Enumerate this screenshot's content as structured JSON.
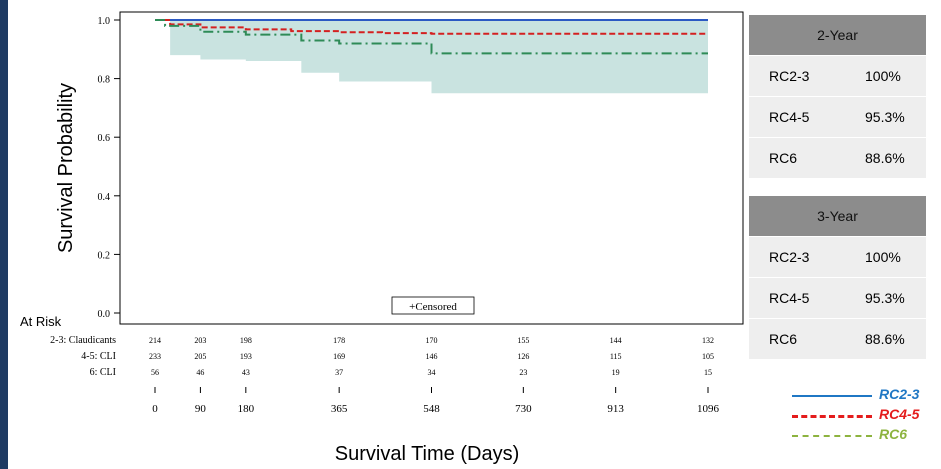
{
  "chart_data": {
    "type": "line",
    "ylabel": "Survival Probability",
    "xlabel": "Survival Time (Days)",
    "ylim": [
      0,
      1
    ],
    "xlim": [
      0,
      1096
    ],
    "yticks": [
      "0.0",
      "0.2",
      "0.4",
      "0.6",
      "0.8",
      "1.0"
    ],
    "xticks": [
      "0",
      "90",
      "180",
      "365",
      "548",
      "730",
      "913",
      "1096"
    ],
    "censored_label": "+Censored",
    "series": [
      {
        "name": "RC2-3",
        "color": "#2b59c3",
        "x": [
          0,
          1096
        ],
        "y": [
          1.0,
          1.0
        ]
      },
      {
        "name": "RC4-5",
        "color": "#d42020",
        "x": [
          0,
          30,
          90,
          180,
          270,
          365,
          450,
          548,
          1096
        ],
        "y": [
          1.0,
          0.985,
          0.975,
          0.968,
          0.962,
          0.958,
          0.955,
          0.953,
          0.953
        ]
      },
      {
        "name": "RC6",
        "color": "#2e8b57",
        "x": [
          0,
          20,
          90,
          180,
          290,
          365,
          548,
          1096
        ],
        "y": [
          1.0,
          0.98,
          0.96,
          0.95,
          0.93,
          0.92,
          0.886,
          0.886
        ]
      }
    ],
    "ci_band": {
      "x": [
        0,
        30,
        90,
        180,
        290,
        365,
        548,
        1096
      ],
      "lower": [
        1.0,
        0.88,
        0.865,
        0.86,
        0.82,
        0.79,
        0.75,
        0.75
      ]
    },
    "at_risk": {
      "label": "At Risk",
      "x": [
        0,
        90,
        180,
        365,
        548,
        730,
        913,
        1096
      ],
      "rows": [
        {
          "label": "2-3: Claudicants",
          "values": [
            "214",
            "203",
            "198",
            "178",
            "170",
            "155",
            "144",
            "132"
          ]
        },
        {
          "label": "4-5: CLI",
          "values": [
            "233",
            "205",
            "193",
            "169",
            "146",
            "126",
            "115",
            "105"
          ]
        },
        {
          "label": "6: CLI",
          "values": [
            "56",
            "46",
            "43",
            "37",
            "34",
            "23",
            "19",
            "15"
          ]
        }
      ]
    }
  },
  "table": {
    "sections": [
      {
        "header": "2-Year",
        "rows": [
          [
            "RC2-3",
            "100%"
          ],
          [
            "RC4-5",
            "95.3%"
          ],
          [
            "RC6",
            "88.6%"
          ]
        ]
      },
      {
        "header": "3-Year",
        "rows": [
          [
            "RC2-3",
            "100%"
          ],
          [
            "RC4-5",
            "95.3%"
          ],
          [
            "RC6",
            "88.6%"
          ]
        ]
      }
    ]
  },
  "legend": [
    {
      "label": "RC2-3",
      "color": "#1f77c4",
      "style": "solid"
    },
    {
      "label": "RC4-5",
      "color": "#e41c1c",
      "style": "dashed"
    },
    {
      "label": "RC6",
      "color": "#8db33f",
      "style": "dashdot"
    }
  ]
}
